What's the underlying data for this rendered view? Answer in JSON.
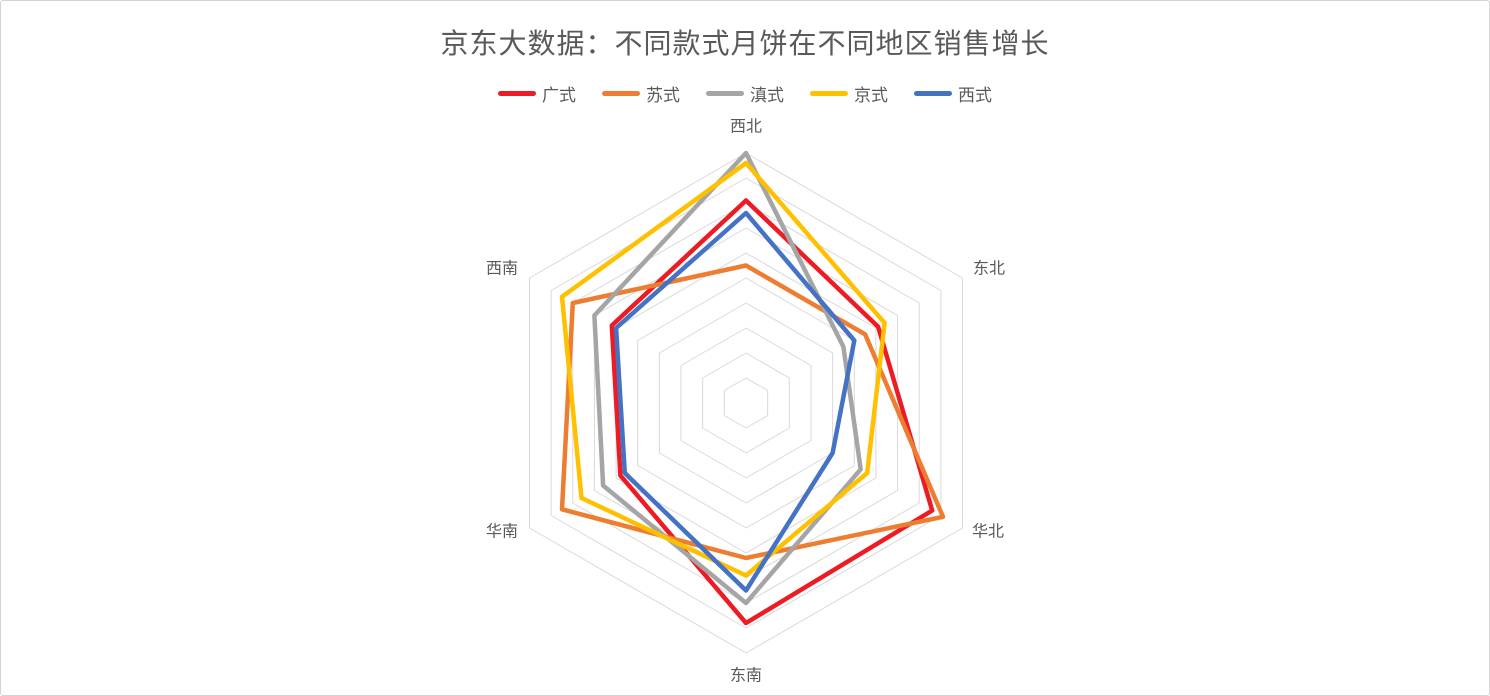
{
  "title": "京东大数据：不同款式月饼在不同地区销售增长",
  "colors": {
    "title_text": "#595959",
    "axis_label_text": "#595959",
    "grid_line": "#d9d9d9",
    "background": "#ffffff"
  },
  "chart_data": {
    "type": "radar",
    "title": "京东大数据：不同款式月饼在不同地区销售增长",
    "categories": [
      "西北",
      "东北",
      "华北",
      "东南",
      "华南",
      "西南"
    ],
    "max": 100,
    "min": 0,
    "rings": 10,
    "grid": "hexagonal, 10 concentric levels, no radial spokes, no tick labels",
    "legend_position": "top-center",
    "grid_color": "#d9d9d9",
    "label_color": "#595959",
    "series": [
      {
        "name": "广式",
        "color": "#ed1c24",
        "values": [
          81,
          61,
          86,
          88,
          58,
          62
        ]
      },
      {
        "name": "苏式",
        "color": "#ed7d31",
        "values": [
          55,
          55,
          91,
          62,
          85,
          80
        ]
      },
      {
        "name": "滇式",
        "color": "#a5a5a5",
        "values": [
          100,
          45,
          53,
          80,
          66,
          70
        ]
      },
      {
        "name": "京式",
        "color": "#ffc000",
        "values": [
          96,
          64,
          56,
          69,
          76,
          85
        ]
      },
      {
        "name": "西式",
        "color": "#4472c4",
        "values": [
          76,
          50,
          40,
          75,
          56,
          60
        ]
      }
    ]
  }
}
